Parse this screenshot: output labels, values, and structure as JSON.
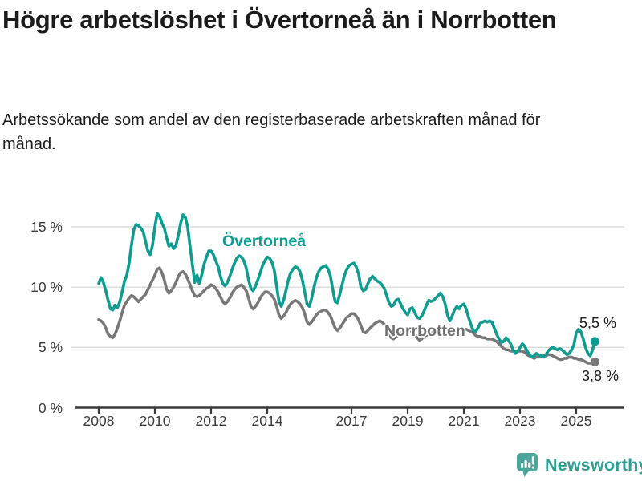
{
  "header": {
    "title": "Högre arbetslöshet i Övertorneå än i Norrbotten",
    "subtitle": "Arbetssökande som andel av den registerbaserade arbetskraften månad för månad."
  },
  "chart_data": {
    "type": "line",
    "title": "Högre arbetslöshet i Övertorneå än i Norrbotten",
    "subtitle": "Arbetssökande som andel av den registerbaserade arbetskraften månad för månad.",
    "unit": "%",
    "frequency": "monthly",
    "x_start": "2008-01",
    "x_end": "2025-09",
    "ylim": [
      0,
      17
    ],
    "grid": "horizontal",
    "legend_position": "inline-labels",
    "colors": {
      "grid": "#dbdbdb",
      "axis": "#3a3a3a"
    },
    "y_ticks": [
      {
        "value": 0,
        "label": "0 %"
      },
      {
        "value": 5,
        "label": "5 %"
      },
      {
        "value": 10,
        "label": "10 %"
      },
      {
        "value": 15,
        "label": "15 %"
      }
    ],
    "x_ticks": [
      {
        "year": 2008,
        "label": "2008"
      },
      {
        "year": 2010,
        "label": "2010"
      },
      {
        "year": 2012,
        "label": "2012"
      },
      {
        "year": 2014,
        "label": "2014"
      },
      {
        "year": 2017,
        "label": "2017"
      },
      {
        "year": 2019,
        "label": "2019"
      },
      {
        "year": 2021,
        "label": "2021"
      },
      {
        "year": 2023,
        "label": "2023"
      },
      {
        "year": 2025,
        "label": "2025"
      }
    ],
    "series": [
      {
        "name": "Övertorneå",
        "color": "#0d9c8f",
        "end_label": "5,5 %",
        "end_value": 5.5,
        "values": [
          10.3,
          10.8,
          10.4,
          9.7,
          8.9,
          8.2,
          8.1,
          8.5,
          8.3,
          8.8,
          9.6,
          10.5,
          11.0,
          12.0,
          13.5,
          14.8,
          15.2,
          15.1,
          14.9,
          14.6,
          13.8,
          13.0,
          12.7,
          13.5,
          15.0,
          16.1,
          15.9,
          15.3,
          14.9,
          14.1,
          13.4,
          13.6,
          13.2,
          13.5,
          14.3,
          15.3,
          16.0,
          15.8,
          15.0,
          13.4,
          11.9,
          10.4,
          11.0,
          10.3,
          11.0,
          11.9,
          12.5,
          13.0,
          13.0,
          12.7,
          12.2,
          11.7,
          10.9,
          10.3,
          10.1,
          10.4,
          10.9,
          11.5,
          12.0,
          12.4,
          12.6,
          12.5,
          12.2,
          11.6,
          10.6,
          9.9,
          9.7,
          10.1,
          10.6,
          11.2,
          11.8,
          12.2,
          12.5,
          12.4,
          12.1,
          11.4,
          10.1,
          8.8,
          8.4,
          8.9,
          9.7,
          10.6,
          11.2,
          11.5,
          11.7,
          11.6,
          11.3,
          10.6,
          9.6,
          8.6,
          8.4,
          9.1,
          10.0,
          10.8,
          11.3,
          11.6,
          11.7,
          11.8,
          11.5,
          10.9,
          9.8,
          8.8,
          8.7,
          9.4,
          10.2,
          11.0,
          11.5,
          11.8,
          11.9,
          12.0,
          11.7,
          11.1,
          10.0,
          9.7,
          9.8,
          10.3,
          10.7,
          10.9,
          10.7,
          10.5,
          10.4,
          10.2,
          9.9,
          9.3,
          8.7,
          8.4,
          8.5,
          8.9,
          9.0,
          8.6,
          8.2,
          7.9,
          7.7,
          8.2,
          8.3,
          7.9,
          7.5,
          7.4,
          7.6,
          8.0,
          8.5,
          8.9,
          8.8,
          8.9,
          9.1,
          9.3,
          9.5,
          9.2,
          8.6,
          7.7,
          7.2,
          7.6,
          8.1,
          8.4,
          8.2,
          8.5,
          8.6,
          8.2,
          7.5,
          6.9,
          6.4,
          6.3,
          6.6,
          7.0,
          7.1,
          7.2,
          7.1,
          7.2,
          7.1,
          6.6,
          6.1,
          5.7,
          5.4,
          5.5,
          5.8,
          5.6,
          5.3,
          4.8,
          4.5,
          4.7,
          5.0,
          5.3,
          5.1,
          4.7,
          4.4,
          4.2,
          4.3,
          4.5,
          4.4,
          4.3,
          4.2,
          4.4,
          4.7,
          4.9,
          5.0,
          4.9,
          4.8,
          4.9,
          4.8,
          4.6,
          4.4,
          4.5,
          4.8,
          5.2,
          6.2,
          6.5,
          6.3,
          5.7,
          5.0,
          4.5,
          4.3,
          4.8,
          5.5
        ]
      },
      {
        "name": "Norrbotten",
        "color": "#787878",
        "end_label": "3,8 %",
        "end_value": 3.8,
        "values": [
          7.3,
          7.2,
          7.0,
          6.6,
          6.1,
          5.9,
          5.8,
          6.1,
          6.6,
          7.2,
          7.9,
          8.5,
          8.8,
          9.1,
          9.3,
          9.2,
          9.0,
          8.8,
          9.0,
          9.2,
          9.4,
          9.8,
          10.2,
          10.6,
          11.0,
          11.5,
          11.6,
          11.2,
          10.6,
          9.8,
          9.5,
          9.7,
          10.0,
          10.4,
          10.9,
          11.2,
          11.3,
          11.1,
          10.7,
          10.2,
          9.7,
          9.3,
          9.2,
          9.3,
          9.5,
          9.7,
          9.9,
          10.0,
          10.2,
          10.1,
          9.9,
          9.6,
          9.2,
          8.8,
          8.6,
          8.8,
          9.1,
          9.5,
          9.8,
          10.0,
          10.1,
          10.2,
          10.0,
          9.7,
          9.1,
          8.4,
          8.2,
          8.4,
          8.7,
          9.1,
          9.4,
          9.6,
          9.6,
          9.5,
          9.3,
          9.0,
          8.4,
          7.7,
          7.4,
          7.6,
          7.9,
          8.3,
          8.6,
          8.8,
          8.9,
          8.8,
          8.6,
          8.3,
          7.8,
          7.1,
          6.9,
          7.1,
          7.4,
          7.7,
          7.9,
          8.0,
          8.1,
          8.1,
          7.9,
          7.6,
          7.1,
          6.6,
          6.4,
          6.6,
          6.9,
          7.2,
          7.5,
          7.6,
          7.8,
          7.8,
          7.6,
          7.3,
          6.8,
          6.3,
          6.2,
          6.4,
          6.6,
          6.8,
          7.0,
          7.1,
          7.2,
          7.1,
          6.9,
          6.6,
          6.2,
          5.8,
          5.7,
          5.9,
          6.0,
          6.2,
          6.3,
          6.4,
          6.5,
          6.4,
          6.3,
          6.1,
          5.8,
          5.6,
          5.7,
          5.9,
          6.0,
          6.1,
          6.2,
          6.3,
          6.4,
          6.4,
          6.5,
          6.6,
          6.6,
          6.5,
          6.4,
          6.4,
          6.3,
          6.3,
          6.2,
          6.3,
          6.4,
          6.5,
          6.4,
          6.3,
          6.2,
          6.0,
          5.9,
          5.9,
          5.8,
          5.8,
          5.7,
          5.7,
          5.7,
          5.6,
          5.5,
          5.3,
          5.1,
          4.9,
          4.8,
          4.8,
          4.7,
          4.7,
          4.7,
          4.7,
          4.7,
          4.7,
          4.6,
          4.4,
          4.3,
          4.2,
          4.1,
          4.2,
          4.2,
          4.3,
          4.3,
          4.3,
          4.4,
          4.4,
          4.3,
          4.2,
          4.1,
          4.0,
          4.0,
          4.1,
          4.1,
          4.2,
          4.2,
          4.1,
          4.1,
          4.0,
          4.0,
          3.9,
          3.8,
          3.7,
          3.7,
          3.7,
          3.8
        ]
      }
    ]
  },
  "footer": {
    "brand": "Newsworthy"
  }
}
